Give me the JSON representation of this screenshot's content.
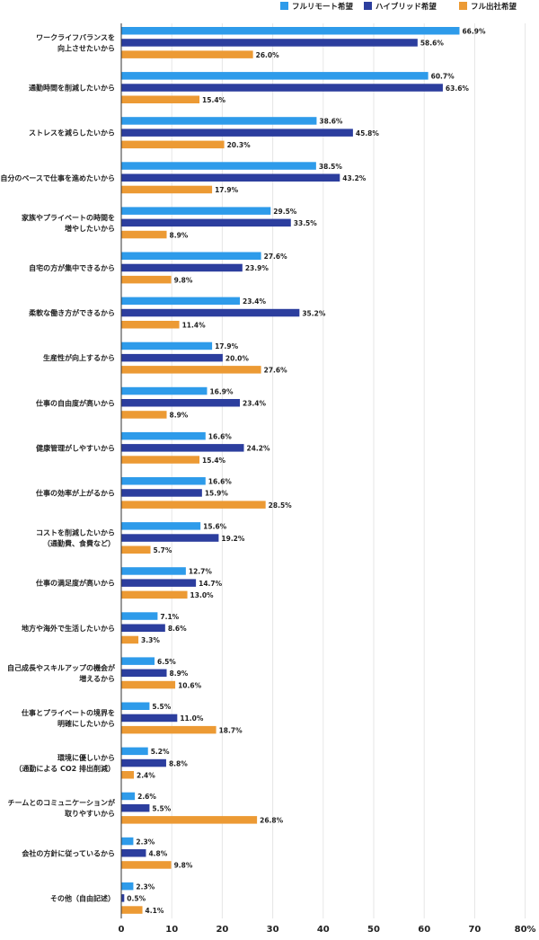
{
  "chart_data": {
    "type": "bar",
    "orientation": "horizontal",
    "title": "",
    "xlabel": "",
    "ylabel": "",
    "xlim": [
      0,
      80
    ],
    "x_ticks": [
      "0",
      "10",
      "20",
      "30",
      "40",
      "50",
      "60",
      "70",
      "80%"
    ],
    "grid": true,
    "legend_position": "top-right",
    "colors": [
      "#2e9bea",
      "#2c3e9e",
      "#ec9a34"
    ],
    "categories": [
      [
        "ワークライフバランスを",
        "向上させたいから"
      ],
      [
        "通勤時間を削減したいから"
      ],
      [
        "ストレスを減らしたいから"
      ],
      [
        "自分のペースで仕事を進めたいから"
      ],
      [
        "家族やプライベートの時間を",
        "増やしたいから"
      ],
      [
        "自宅の方が集中できるから"
      ],
      [
        "柔軟な働き方ができるから"
      ],
      [
        "生産性が向上するから"
      ],
      [
        "仕事の自由度が高いから"
      ],
      [
        "健康管理がしやすいから"
      ],
      [
        "仕事の効率が上がるから"
      ],
      [
        "コストを削減したいから",
        "（通勤費、食費など）"
      ],
      [
        "仕事の満足度が高いから"
      ],
      [
        "地方や海外で生活したいから"
      ],
      [
        "自己成長やスキルアップの機会が",
        "増えるから"
      ],
      [
        "仕事とプライベートの境界を",
        "明確にしたいから"
      ],
      [
        "環境に優しいから",
        "（通勤による CO2 排出削減）"
      ],
      [
        "チームとのコミュニケーションが",
        "取りやすいから"
      ],
      [
        "会社の方針に従っているから"
      ],
      [
        "その他（自由記述）"
      ]
    ],
    "series": [
      {
        "name": "フルリモート希望",
        "values": [
          66.9,
          60.7,
          38.6,
          38.5,
          29.5,
          27.6,
          23.4,
          17.9,
          16.9,
          16.6,
          16.6,
          15.6,
          12.7,
          7.1,
          6.5,
          5.5,
          5.2,
          2.6,
          2.3,
          2.3
        ],
        "labels": [
          "66.9%",
          "60.7%",
          "38.6%",
          "38.5%",
          "29.5%",
          "27.6%",
          "23.4%",
          "17.9%",
          "16.9%",
          "16.6%",
          "16.6%",
          "15.6%",
          "12.7%",
          "7.1%",
          "6.5%",
          "5.5%",
          "5.2%",
          "2.6%",
          "2.3%",
          "2.3%"
        ]
      },
      {
        "name": "ハイブリッド希望",
        "values": [
          58.6,
          63.6,
          45.8,
          43.2,
          33.5,
          23.9,
          35.2,
          20.0,
          23.4,
          24.2,
          15.9,
          19.2,
          14.7,
          8.6,
          8.9,
          11.0,
          8.8,
          5.5,
          4.8,
          0.5
        ],
        "labels": [
          "58.6%",
          "63.6%",
          "45.8%",
          "43.2%",
          "33.5%",
          "23.9%",
          "35.2%",
          "20.0%",
          "23.4%",
          "24.2%",
          "15.9%",
          "19.2%",
          "14.7%",
          "8.6%",
          "8.9%",
          "11.0%",
          "8.8%",
          "5.5%",
          "4.8%",
          "0.5%"
        ]
      },
      {
        "name": "フル出社希望",
        "values": [
          26.0,
          15.4,
          20.3,
          17.9,
          8.9,
          9.8,
          11.4,
          27.6,
          8.9,
          15.4,
          28.5,
          5.7,
          13.0,
          3.3,
          10.6,
          18.7,
          2.4,
          26.8,
          9.8,
          4.1
        ],
        "labels": [
          "26.0%",
          "15.4%",
          "20.3%",
          "17.9%",
          "8.9%",
          "9.8%",
          "11.4%",
          "27.6%",
          "8.9%",
          "15.4%",
          "28.5%",
          "5.7%",
          "13.0%",
          "3.3%",
          "10.6%",
          "18.7%",
          "2.4%",
          "26.8%",
          "9.8%",
          "4.1%"
        ]
      }
    ]
  }
}
